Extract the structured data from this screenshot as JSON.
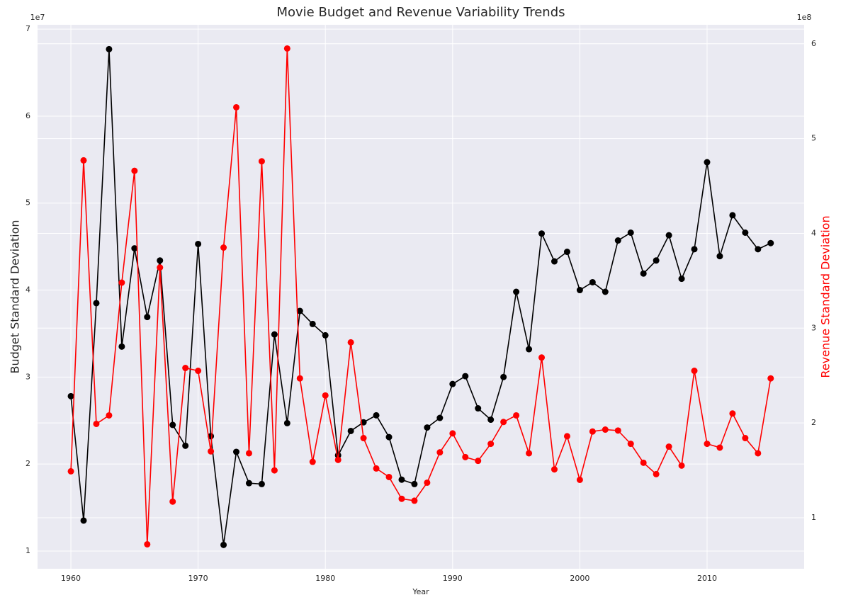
{
  "chart_data": {
    "type": "line",
    "title": "Movie Budget and Revenue Variability Trends",
    "xlabel": "Year",
    "ylabel": "Budget Standard Deviation",
    "y2label": "Revenue Standard Deviation",
    "y_offset": "1e7",
    "y2_offset": "1e8",
    "x": [
      1960,
      1961,
      1962,
      1963,
      1964,
      1965,
      1966,
      1967,
      1968,
      1969,
      1970,
      1971,
      1972,
      1973,
      1974,
      1975,
      1976,
      1977,
      1978,
      1979,
      1980,
      1981,
      1982,
      1983,
      1984,
      1985,
      1986,
      1987,
      1988,
      1989,
      1990,
      1991,
      1992,
      1993,
      1994,
      1995,
      1996,
      1997,
      1998,
      1999,
      2000,
      2001,
      2002,
      2003,
      2004,
      2005,
      2006,
      2007,
      2008,
      2009,
      2010,
      2011,
      2012,
      2013,
      2014,
      2015
    ],
    "series": [
      {
        "name": "Budget Standard Deviation",
        "color": "#000000",
        "axis": "y",
        "values": [
          2.78,
          1.35,
          3.85,
          6.77,
          3.35,
          4.48,
          3.69,
          4.34,
          2.45,
          2.21,
          4.53,
          2.32,
          1.07,
          2.14,
          1.78,
          1.77,
          3.49,
          2.47,
          3.76,
          3.61,
          3.48,
          2.1,
          2.38,
          2.48,
          2.56,
          2.31,
          1.82,
          1.77,
          2.42,
          2.53,
          2.92,
          3.01,
          2.64,
          2.51,
          3.0,
          3.98,
          3.32,
          4.65,
          4.33,
          4.44,
          4.0,
          4.09,
          3.98,
          4.57,
          4.66,
          4.19,
          4.34,
          4.63,
          4.13,
          4.47,
          5.47,
          4.39,
          4.86,
          4.66,
          4.47,
          4.54
        ]
      },
      {
        "name": "Revenue Standard Deviation",
        "color": "#ff0000",
        "axis": "y2",
        "values": [
          1.49,
          4.77,
          1.99,
          2.08,
          3.48,
          4.66,
          0.72,
          3.64,
          1.17,
          2.58,
          2.55,
          1.7,
          3.85,
          5.33,
          1.68,
          4.76,
          1.5,
          5.95,
          2.47,
          1.59,
          2.29,
          1.61,
          2.85,
          1.84,
          1.52,
          1.43,
          1.2,
          1.18,
          1.37,
          1.69,
          1.89,
          1.64,
          1.6,
          1.78,
          2.01,
          2.08,
          1.68,
          2.69,
          1.51,
          1.86,
          1.4,
          1.91,
          1.93,
          1.92,
          1.78,
          1.58,
          1.46,
          1.75,
          1.55,
          2.55,
          1.78,
          1.74,
          2.1,
          1.84,
          1.68,
          2.47
        ]
      }
    ],
    "xlim": [
      1957.38,
      2017.63
    ],
    "xticks": [
      1960,
      1970,
      1980,
      1990,
      2000,
      2010
    ],
    "ylim": [
      0.796,
      7.05
    ],
    "yticks": [
      1,
      2,
      3,
      4,
      5,
      6,
      7
    ],
    "y2lim": [
      0.462,
      6.2
    ],
    "y2ticks": [
      1,
      2,
      3,
      4,
      5,
      6
    ],
    "grid": true
  }
}
